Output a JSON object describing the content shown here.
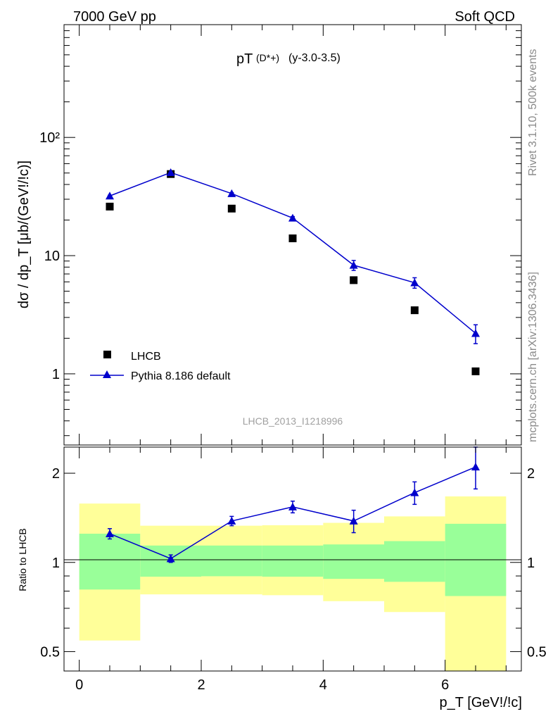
{
  "header": {
    "left": "7000 GeV pp",
    "right": "Soft QCD"
  },
  "side": {
    "rivet": "Rivet 3.1.10,  500k events",
    "source": "mcplots.cern.ch [arXiv:1306.3436]"
  },
  "chart_data": [
    {
      "type": "scatter",
      "scale": "log",
      "title_main": "pT",
      "title_particle": "(D*+)",
      "title_range": "(y-3.0-3.5)",
      "analysis_label": "LHCB_2013_I1218996",
      "ylabel": "dσ / dp_T [μb/(GeV!/!c)]",
      "ylim": [
        0.25,
        900
      ],
      "yticks": [
        {
          "value": 1,
          "label": "1"
        },
        {
          "value": 10,
          "label": "10"
        },
        {
          "value": 100,
          "label": "10²"
        }
      ],
      "x": [
        0.5,
        1.5,
        2.5,
        3.5,
        4.5,
        5.5,
        6.5
      ],
      "series": [
        {
          "name": "LHCB",
          "marker": "square",
          "color": "#000000",
          "values": [
            26.0,
            49.0,
            25.0,
            14.0,
            6.2,
            3.45,
            1.05
          ]
        },
        {
          "name": "Pythia 8.186 default",
          "marker": "triangle",
          "color": "#0000cc",
          "values": [
            32.0,
            50.5,
            33.5,
            20.8,
            8.3,
            5.9,
            2.2
          ],
          "errors": [
            0.4,
            0.8,
            0.6,
            0.6,
            0.8,
            0.6,
            0.4
          ]
        }
      ]
    },
    {
      "type": "scatter",
      "scale": "log",
      "ylabel": "Ratio to LHCB",
      "xlabel": "p_T [GeV!/!c]",
      "xlim": [
        -0.25,
        7.25
      ],
      "ylim": [
        0.43,
        2.45
      ],
      "xticks": [
        {
          "value": 0,
          "label": "0"
        },
        {
          "value": 2,
          "label": "2"
        },
        {
          "value": 4,
          "label": "4"
        },
        {
          "value": 6,
          "label": "6"
        }
      ],
      "yticks": [
        {
          "value": 0.5,
          "label": "0.5"
        },
        {
          "value": 1,
          "label": "1"
        },
        {
          "value": 2,
          "label": "2"
        }
      ],
      "bands": [
        {
          "xlo": 0,
          "xhi": 1,
          "inner": [
            0.81,
            1.25
          ],
          "outer": [
            0.545,
            1.58
          ]
        },
        {
          "xlo": 1,
          "xhi": 2,
          "inner": [
            0.895,
            1.14
          ],
          "outer": [
            0.78,
            1.33
          ]
        },
        {
          "xlo": 2,
          "xhi": 3,
          "inner": [
            0.898,
            1.14
          ],
          "outer": [
            0.78,
            1.33
          ]
        },
        {
          "xlo": 3,
          "xhi": 4,
          "inner": [
            0.895,
            1.14
          ],
          "outer": [
            0.775,
            1.335
          ]
        },
        {
          "xlo": 4,
          "xhi": 5,
          "inner": [
            0.88,
            1.15
          ],
          "outer": [
            0.74,
            1.36
          ]
        },
        {
          "xlo": 5,
          "xhi": 6,
          "inner": [
            0.86,
            1.18
          ],
          "outer": [
            0.68,
            1.43
          ]
        },
        {
          "xlo": 6,
          "xhi": 7,
          "inner": [
            0.77,
            1.35
          ],
          "outer": [
            0.415,
            1.67
          ]
        }
      ],
      "x": [
        0.5,
        1.5,
        2.5,
        3.5,
        4.5,
        5.5,
        6.5
      ],
      "ratio": [
        1.25,
        1.03,
        1.38,
        1.54,
        1.38,
        1.72,
        2.1
      ],
      "ratio_err_lo": [
        0.05,
        0.03,
        0.05,
        0.07,
        0.12,
        0.15,
        0.33
      ],
      "ratio_err_hi": [
        0.05,
        0.03,
        0.05,
        0.07,
        0.12,
        0.15,
        0.38
      ]
    }
  ]
}
